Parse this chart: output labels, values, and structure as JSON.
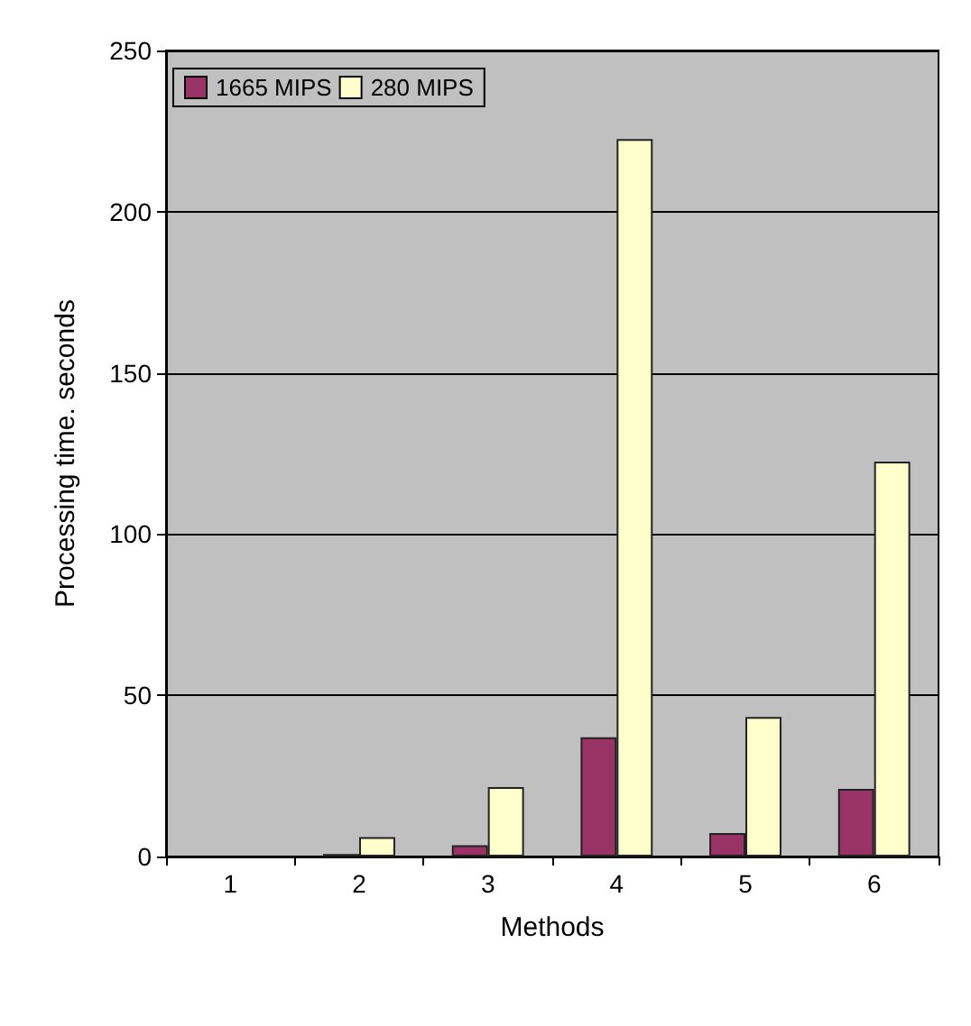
{
  "chart_data": {
    "type": "bar",
    "xlabel": "Methods",
    "ylabel": "Processing time. seconds",
    "categories": [
      "1",
      "2",
      "3",
      "4",
      "5",
      "6"
    ],
    "series": [
      {
        "name": "1665 MIPS",
        "color": "#993366",
        "values": [
          null,
          0.8,
          3.5,
          37,
          7.3,
          21
        ]
      },
      {
        "name": "280 MIPS",
        "color": "#ffffcc",
        "values": [
          null,
          6,
          21.5,
          222.5,
          43.3,
          122.5
        ]
      }
    ],
    "ylim": [
      0,
      250
    ],
    "yticks": [
      0,
      50,
      100,
      150,
      200,
      250
    ],
    "grid": "y",
    "legend": "top left"
  }
}
